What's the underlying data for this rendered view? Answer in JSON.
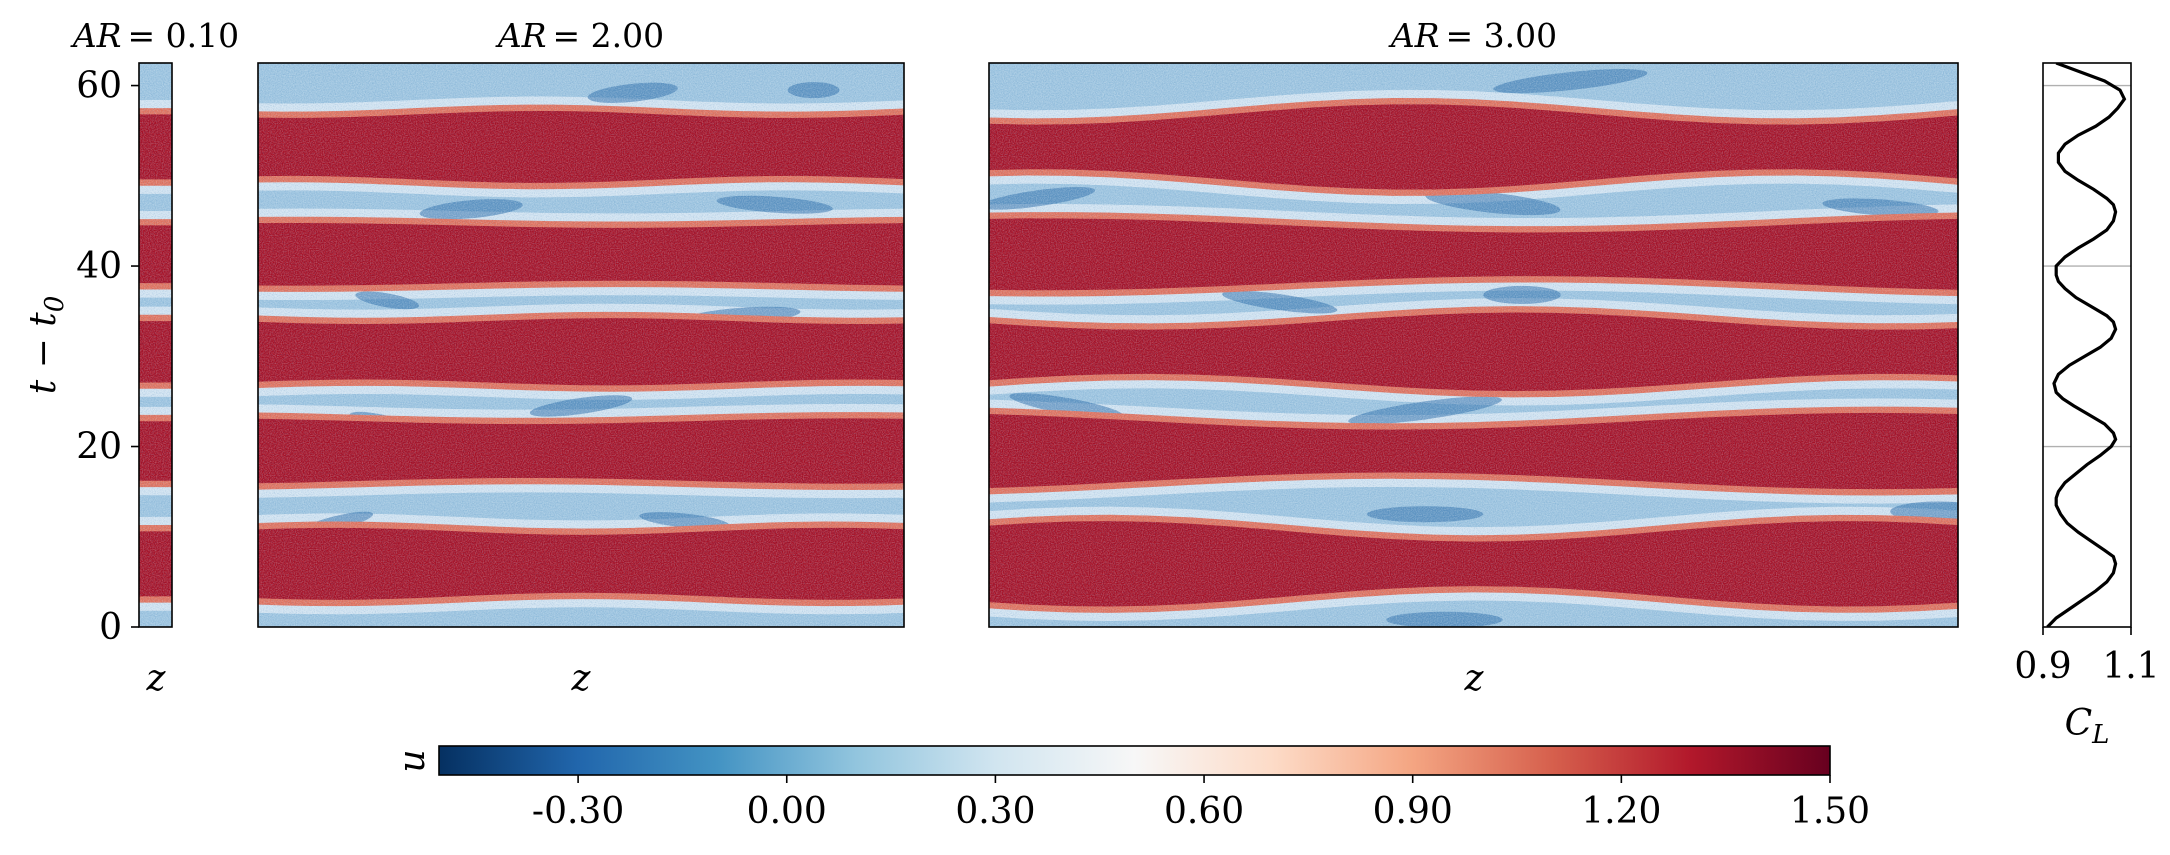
{
  "chart_data": [
    {
      "type": "heatmap",
      "title": "AR = 0.10",
      "title_var": "AR",
      "title_value": "= 0.10",
      "xlabel": "z",
      "ylabel": "t − t",
      "ylabel_sub": "0",
      "ylim": [
        0,
        62.5
      ],
      "yticks": [
        "0",
        "20",
        "40",
        "60"
      ],
      "ytick_values": [
        0,
        20,
        40,
        60
      ],
      "z_extent": 0.1
    },
    {
      "type": "heatmap",
      "title": "AR = 2.00",
      "title_var": "AR",
      "title_value": "= 2.00",
      "xlabel": "z",
      "ylim": [
        0,
        62.5
      ],
      "z_extent": 2.0,
      "description_bands": "high-velocity bands centered near t−t0 = 7, 20, 31, 41, 53"
    },
    {
      "type": "heatmap",
      "title": "AR = 3.00",
      "title_var": "AR",
      "title_value": "= 3.00",
      "xlabel": "z",
      "ylim": [
        0,
        62.5
      ],
      "z_extent": 3.0
    },
    {
      "type": "line",
      "xlabel": "C",
      "xlabel_sub": "L",
      "xlim": [
        0.9,
        1.1
      ],
      "xticks": [
        "0.9",
        "1.1"
      ],
      "xtick_values": [
        0.9,
        1.1
      ],
      "ylim": [
        0,
        62.5
      ],
      "grid_y": [
        20,
        40,
        60
      ],
      "series": [
        {
          "t": [
            0,
            1,
            2,
            3,
            4,
            5,
            6,
            7,
            7.8,
            8.5,
            9.5,
            10.5,
            11.5,
            12.5,
            13.5,
            14.3,
            15,
            16,
            17,
            18,
            19,
            20,
            20.8,
            21.5,
            22.5,
            23.5,
            24.5,
            25.3,
            26,
            27,
            28,
            29,
            30,
            31,
            32,
            33,
            33.8,
            34.5,
            35.5,
            36.5,
            37.5,
            38.3,
            39,
            40,
            41,
            42,
            43,
            44,
            45,
            46,
            46.8,
            47.5,
            48.5,
            49.5,
            50.5,
            51.5,
            52.5,
            53.5,
            54.5,
            55.5,
            56.5,
            57.5,
            58.5,
            59.5,
            60.5,
            61.5,
            62.5
          ],
          "values": [
            0.91,
            0.93,
            0.96,
            0.99,
            1.02,
            1.045,
            1.06,
            1.065,
            1.06,
            1.04,
            1.01,
            0.98,
            0.955,
            0.94,
            0.93,
            0.93,
            0.935,
            0.95,
            0.975,
            1.0,
            1.03,
            1.055,
            1.065,
            1.06,
            1.04,
            1.005,
            0.97,
            0.945,
            0.93,
            0.925,
            0.935,
            0.96,
            0.995,
            1.03,
            1.055,
            1.065,
            1.06,
            1.045,
            1.01,
            0.975,
            0.95,
            0.935,
            0.93,
            0.93,
            0.95,
            0.98,
            1.015,
            1.045,
            1.06,
            1.065,
            1.06,
            1.045,
            1.015,
            0.98,
            0.95,
            0.935,
            0.935,
            0.95,
            0.98,
            1.02,
            1.05,
            1.07,
            1.085,
            1.075,
            1.04,
            0.985,
            0.93
          ]
        }
      ]
    }
  ],
  "colorbar": {
    "label": "u",
    "vmin": -0.5,
    "vmax": 1.5,
    "ticks": [
      "-0.30",
      "0.00",
      "0.30",
      "0.60",
      "0.90",
      "1.20",
      "1.50"
    ],
    "tick_values": [
      -0.3,
      0.0,
      0.3,
      0.6,
      0.9,
      1.2,
      1.5
    ],
    "colormap": [
      "#053061",
      "#2166ac",
      "#4393c3",
      "#92c5de",
      "#d1e5f0",
      "#f7f7f7",
      "#fddbc7",
      "#f4a582",
      "#d6604d",
      "#b2182b",
      "#67001f"
    ]
  },
  "colors": {
    "band_red": "#a50f25",
    "band_light_red": "#e0705c",
    "bg_blue": "#9cc4e0",
    "bg_light": "#dbe9f3",
    "streak_blue": "#2c6ea9"
  }
}
